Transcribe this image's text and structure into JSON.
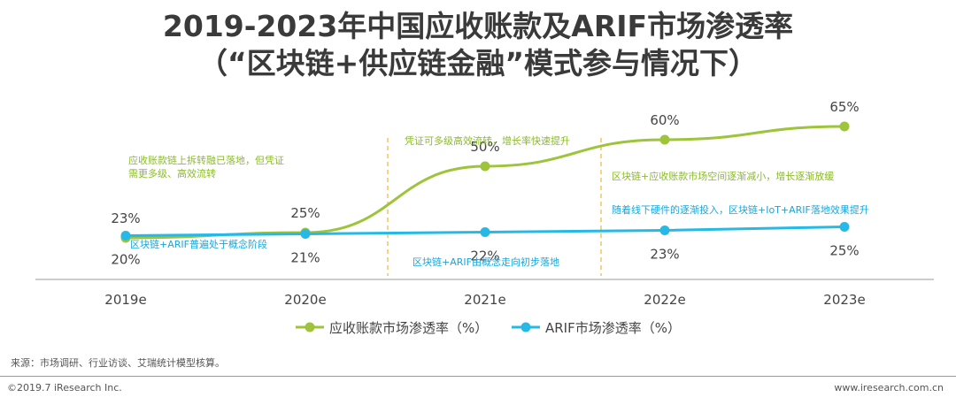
{
  "title_line1": "2019-2023年中国应收账款及ARIF市场渗透率",
  "title_line2": "（“区块链+供应链金融”模式参与情况下）",
  "colors": {
    "green": "#9dc43a",
    "blue": "#27b9e6",
    "green_text": "#8bbb2a",
    "blue_text": "#1aa6dc",
    "divider": "#f5b335"
  },
  "chart_data": {
    "type": "line",
    "categories": [
      "2019e",
      "2020e",
      "2021e",
      "2022e",
      "2023e"
    ],
    "series": [
      {
        "name": "应收账款市场渗透率（%）",
        "values": [
          23,
          25,
          50,
          60,
          65
        ],
        "labels": [
          "23%",
          "25%",
          "50%",
          "60%",
          "65%"
        ]
      },
      {
        "name": "ARIF市场渗透率（%）",
        "values": [
          20,
          21,
          22,
          23,
          25
        ],
        "labels": [
          "20%",
          "21%",
          "22%",
          "23%",
          "25%"
        ]
      }
    ],
    "legend_position": "bottom",
    "annotations": {
      "green": [
        "应收账款链上拆转融已落地，但凭证",
        "需更多级、高效流转",
        "凭证可多级高效流转，增长率快速提升",
        "区块链+应收账款市场空间逐渐减小，增长逐渐放缓"
      ],
      "blue": [
        "区块链+ARIF普遍处于概念阶段",
        "区块链+ARIF由概念走向初步落地",
        "随着线下硬件的逐渐投入，区块链+IoT+ARIF落地效果提升"
      ]
    }
  },
  "footer": {
    "source": "来源：市场调研、行业访谈、艾瑞统计模型核算。",
    "copyright": "©2019.7 iResearch Inc.",
    "website": "www.iresearch.com.cn"
  }
}
